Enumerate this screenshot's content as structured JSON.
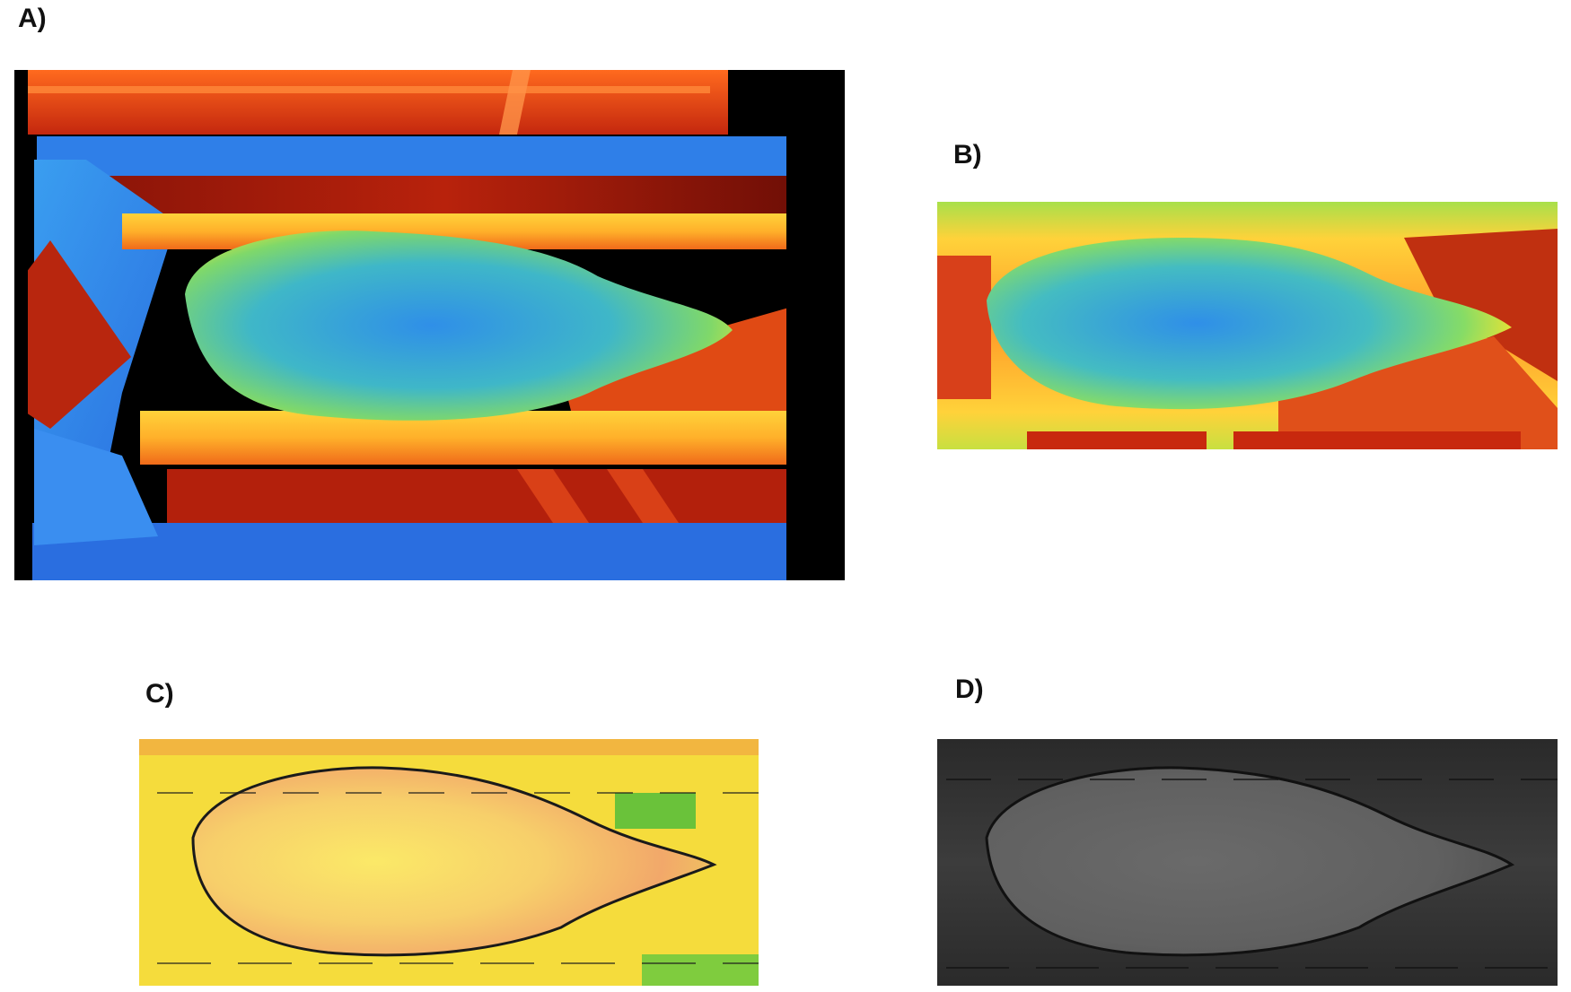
{
  "panels": [
    {
      "label": "A)",
      "description": "depth-map-jet-colormap-full-scene"
    },
    {
      "label": "B)",
      "description": "depth-map-jet-colormap-cropped"
    },
    {
      "label": "C)",
      "description": "depth-map-yellow-colormap-cropped"
    },
    {
      "label": "D)",
      "description": "depth-map-grayscale-cropped"
    }
  ]
}
